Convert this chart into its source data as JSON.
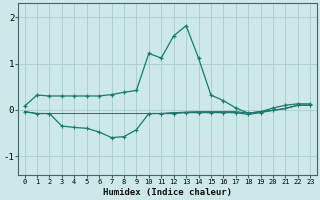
{
  "xlabel": "Humidex (Indice chaleur)",
  "bg_color": "#cce8e8",
  "grid_color": "#aacccc",
  "line_color": "#1a7a6e",
  "x": [
    0,
    1,
    2,
    3,
    4,
    5,
    6,
    7,
    8,
    9,
    10,
    11,
    12,
    13,
    14,
    15,
    16,
    17,
    18,
    19,
    20,
    21,
    22,
    23
  ],
  "line1": [
    0.08,
    0.32,
    0.3,
    0.3,
    0.3,
    0.3,
    0.3,
    0.33,
    0.38,
    0.42,
    1.22,
    1.12,
    1.6,
    1.82,
    1.12,
    0.32,
    0.2,
    0.04,
    -0.07,
    -0.04,
    0.04,
    0.1,
    0.13,
    0.13
  ],
  "line2": [
    -0.04,
    -0.08,
    -0.08,
    -0.35,
    -0.38,
    -0.4,
    -0.48,
    -0.6,
    -0.58,
    -0.43,
    -0.08,
    -0.08,
    -0.08,
    -0.06,
    -0.06,
    -0.06,
    -0.06,
    -0.06,
    -0.1,
    -0.06,
    -0.01,
    0.03,
    0.1,
    0.1
  ],
  "line3": [
    -0.04,
    -0.08,
    -0.08,
    -0.08,
    -0.08,
    -0.08,
    -0.08,
    -0.08,
    -0.08,
    -0.08,
    -0.08,
    -0.08,
    -0.06,
    -0.05,
    -0.04,
    -0.04,
    -0.04,
    -0.04,
    -0.07,
    -0.04,
    -0.01,
    0.03,
    0.1,
    0.1
  ],
  "line4": [
    -0.04,
    -0.08,
    -0.08,
    -0.08,
    -0.08,
    -0.08,
    -0.08,
    -0.08,
    -0.08,
    -0.08,
    -0.08,
    -0.08,
    -0.06,
    -0.05,
    -0.04,
    -0.04,
    -0.04,
    -0.04,
    -0.07,
    -0.04,
    -0.01,
    0.03,
    0.1,
    0.1
  ],
  "ylim": [
    -1.4,
    2.3
  ],
  "xlim": [
    -0.5,
    23.5
  ],
  "yticks": [
    -1,
    0,
    1,
    2
  ],
  "xticks": [
    0,
    1,
    2,
    3,
    4,
    5,
    6,
    7,
    8,
    9,
    10,
    11,
    12,
    13,
    14,
    15,
    16,
    17,
    18,
    19,
    20,
    21,
    22,
    23
  ]
}
